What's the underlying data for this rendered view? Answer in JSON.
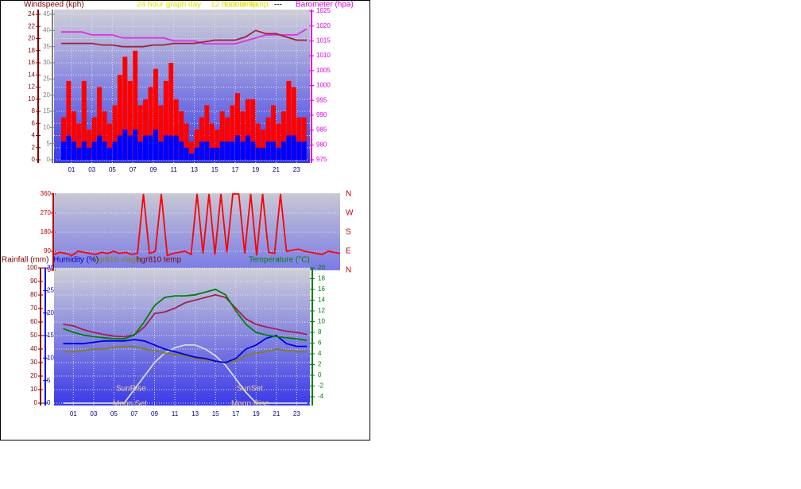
{
  "chart_data": [
    {
      "type": "combo",
      "title": "24 hour graph day",
      "subtitles": [
        "12 hour temp.",
        "Indoor Temp.",
        "---"
      ],
      "ylabel": "Windspeed (kph)",
      "y2label": "Barometer (hpa)",
      "xlim": [
        -0.7,
        24.3
      ],
      "xticks": [
        {
          "value": 1,
          "label": "01"
        },
        {
          "value": 3,
          "label": "03"
        },
        {
          "value": 5,
          "label": "05"
        },
        {
          "value": 7,
          "label": "07"
        },
        {
          "value": 9,
          "label": "09"
        },
        11,
        13,
        15,
        17,
        19,
        21,
        23
      ],
      "ylim": [
        0,
        24
      ],
      "yticks": [
        0,
        2,
        4,
        6,
        8,
        10,
        12,
        14,
        16,
        18,
        20,
        22,
        24
      ],
      "y3lim": [
        0,
        45
      ],
      "y3ticks": [
        0,
        5,
        10,
        15,
        20,
        25,
        30,
        35,
        40,
        45
      ],
      "y2lim": [
        975,
        1025
      ],
      "y2ticks": [
        975,
        980,
        985,
        990,
        995,
        1000,
        1005,
        1010,
        1015,
        1020,
        1025
      ],
      "grid": true,
      "series": [
        {
          "kind": "bar",
          "axis": "y",
          "color": "#ff0000",
          "x": [
            0,
            0.5,
            1,
            1.5,
            2,
            2.5,
            3,
            3.5,
            4,
            4.5,
            5,
            5.5,
            6,
            6.5,
            7,
            7.5,
            8,
            8.5,
            9,
            9.5,
            10,
            10.5,
            11,
            11.5,
            12,
            12.5,
            13,
            13.5,
            14,
            14.5,
            15,
            15.5,
            16,
            16.5,
            17,
            17.5,
            18,
            18.5,
            19,
            19.5,
            20,
            20.5,
            21,
            21.5,
            22,
            22.5,
            23,
            23.5
          ],
          "values": [
            7,
            13,
            8,
            6,
            13,
            5,
            7,
            12,
            8,
            6,
            9,
            14,
            17,
            13,
            18,
            9,
            10,
            12,
            15,
            9,
            13,
            16,
            10,
            8,
            6,
            3,
            5,
            7,
            9,
            6,
            5,
            8,
            7,
            9,
            11,
            8,
            10,
            10,
            6,
            5,
            7,
            9,
            6,
            8,
            13,
            12,
            7,
            7
          ]
        },
        {
          "kind": "bar",
          "axis": "y",
          "color": "#0000ff",
          "x": [
            0,
            0.5,
            1,
            1.5,
            2,
            2.5,
            3,
            3.5,
            4,
            4.5,
            5,
            5.5,
            6,
            6.5,
            7,
            7.5,
            8,
            8.5,
            9,
            9.5,
            10,
            10.5,
            11,
            11.5,
            12,
            12.5,
            13,
            13.5,
            14,
            14.5,
            15,
            15.5,
            16,
            16.5,
            17,
            17.5,
            18,
            18.5,
            19,
            19.5,
            20,
            20.5,
            21,
            21.5,
            22,
            22.5,
            23,
            23.5
          ],
          "values": [
            3,
            4,
            3,
            2,
            3,
            2,
            3,
            4,
            3,
            2,
            3,
            4,
            5,
            4,
            5,
            3,
            4,
            4,
            5,
            3,
            4,
            4,
            4,
            3,
            2,
            1,
            2,
            3,
            3,
            2,
            2,
            3,
            3,
            3,
            4,
            3,
            4,
            3,
            2,
            2,
            3,
            3,
            2,
            3,
            4,
            4,
            3,
            3
          ]
        },
        {
          "kind": "line",
          "axis": "y2",
          "color": "#e030e0",
          "x": [
            0,
            1,
            2,
            3,
            4,
            5,
            6,
            7,
            8,
            9,
            10,
            11,
            12,
            13,
            14,
            15,
            16,
            17,
            18,
            19,
            20,
            21,
            22,
            23,
            24
          ],
          "values": [
            1018,
            1018,
            1018,
            1017,
            1017,
            1017,
            1016,
            1016,
            1016,
            1016,
            1016,
            1015,
            1015,
            1015,
            1014,
            1014,
            1014,
            1014,
            1015,
            1016,
            1017,
            1017,
            1017,
            1017,
            1019
          ]
        },
        {
          "kind": "line",
          "axis": "y3",
          "color": "#a02040",
          "x": [
            0,
            1,
            2,
            3,
            4,
            5,
            6,
            7,
            8,
            9,
            10,
            11,
            12,
            13,
            14,
            15,
            16,
            17,
            18,
            19,
            20,
            21,
            22,
            23,
            24
          ],
          "values": [
            36,
            36,
            36,
            36,
            35.5,
            35.5,
            35,
            35,
            35,
            35.5,
            35.5,
            36,
            36,
            36,
            36.5,
            37,
            37,
            37,
            38,
            40,
            39,
            39,
            38,
            37,
            37
          ]
        }
      ]
    },
    {
      "type": "line",
      "xlim": [
        0,
        24
      ],
      "ylim": [
        0,
        360
      ],
      "yticks": [
        0,
        90,
        180,
        270,
        360
      ],
      "compass": [
        "N",
        "W",
        "S",
        "E",
        "N"
      ],
      "grid": true,
      "series": [
        {
          "kind": "line",
          "axis": "y",
          "color": "#ff0000",
          "x": [
            0,
            0.5,
            1,
            1.5,
            2,
            2.5,
            3,
            3.5,
            4,
            4.5,
            5,
            5.5,
            6,
            6.5,
            7,
            7.5,
            8,
            8.5,
            9,
            9.5,
            10,
            10.5,
            11,
            11.5,
            12,
            12.5,
            13,
            13.5,
            14,
            14.5,
            15,
            15.5,
            16,
            16.5,
            17,
            17.5,
            18,
            18.5,
            19,
            19.5,
            20,
            20.5,
            21,
            21.5,
            22,
            22.5,
            23,
            23.5,
            24
          ],
          "values": [
            75,
            85,
            80,
            70,
            90,
            85,
            80,
            75,
            85,
            80,
            90,
            80,
            85,
            75,
            80,
            360,
            80,
            90,
            360,
            70,
            80,
            85,
            90,
            75,
            360,
            80,
            360,
            75,
            360,
            85,
            360,
            360,
            80,
            360,
            70,
            360,
            85,
            80,
            360,
            90,
            95,
            100,
            90,
            85,
            80,
            75,
            90,
            85,
            80
          ]
        }
      ]
    },
    {
      "type": "line",
      "ylabel": "Rainfall (mm)",
      "y3label": "Humidity (%)",
      "y2label": "Temperature (°C)",
      "annotations": [
        "SunRise",
        "SunSet",
        "Moon Set",
        "Moon Rise"
      ],
      "xlim": [
        -0.9,
        24.3
      ],
      "xticks": [
        {
          "value": 1,
          "label": "01"
        },
        {
          "value": 3,
          "label": "03"
        },
        {
          "value": 5,
          "label": "05"
        },
        {
          "value": 7,
          "label": "07"
        },
        {
          "value": 9,
          "label": "09"
        },
        11,
        13,
        15,
        17,
        19,
        21,
        23
      ],
      "ylim": [
        0,
        100
      ],
      "yticks": [
        0,
        10,
        20,
        30,
        40,
        50,
        60,
        70,
        80,
        90,
        100
      ],
      "y3lim": [
        0,
        30
      ],
      "y3ticks": [
        0,
        5,
        10,
        15,
        20,
        25,
        30
      ],
      "y2lim": [
        -4,
        20
      ],
      "y2ticks": [
        -4,
        -2,
        0,
        2,
        4,
        6,
        8,
        10,
        12,
        14,
        16,
        18,
        20
      ],
      "grid": true,
      "series": [
        {
          "kind": "line",
          "axis": "y",
          "color": "#d8d8d8",
          "x": [
            0,
            1,
            2,
            3,
            4,
            5,
            6,
            7,
            8,
            9,
            10,
            11,
            12,
            13,
            14,
            15,
            16,
            17,
            18,
            19,
            20,
            21,
            22,
            23,
            24
          ],
          "values": [
            0,
            0,
            0,
            0,
            0,
            0,
            0,
            10,
            20,
            30,
            37,
            41,
            43,
            43,
            40,
            35,
            28,
            18,
            8,
            0,
            0,
            0,
            0,
            0,
            0
          ]
        },
        {
          "kind": "line",
          "axis": "y",
          "name": "hgr810 vlagh",
          "color": "#808020",
          "x": [
            0,
            1,
            2,
            3,
            4,
            5,
            6,
            7,
            8,
            9,
            10,
            11,
            12,
            13,
            14,
            15,
            16,
            17,
            18,
            19,
            20,
            21,
            22,
            23,
            24
          ],
          "values": [
            38,
            38,
            39,
            40,
            40,
            41,
            42,
            42,
            40,
            39,
            37,
            36,
            35,
            33,
            32,
            31,
            30,
            31,
            35,
            37,
            38,
            40,
            39,
            38,
            38
          ]
        },
        {
          "kind": "line",
          "axis": "y",
          "color": "#0000e0",
          "x": [
            0,
            1,
            2,
            3,
            4,
            5,
            6,
            7,
            8,
            9,
            10,
            11,
            12,
            13,
            14,
            15,
            16,
            17,
            18,
            19,
            20,
            21,
            22,
            23,
            24
          ],
          "values": [
            44,
            44,
            44,
            45,
            46,
            46,
            46,
            47,
            46,
            43,
            40,
            38,
            36,
            34,
            33,
            31,
            30,
            33,
            40,
            43,
            48,
            50,
            44,
            42,
            42
          ]
        },
        {
          "kind": "line",
          "axis": "y2",
          "name": "hgr810 temp",
          "color": "#a02050",
          "x": [
            0,
            1,
            2,
            3,
            4,
            5,
            6,
            7,
            8,
            9,
            10,
            11,
            12,
            13,
            14,
            15,
            16,
            17,
            18,
            19,
            20,
            21,
            22,
            23,
            24
          ],
          "values": [
            9.5,
            9.2,
            8.5,
            8,
            7.6,
            7.3,
            7.2,
            7.5,
            9,
            11.5,
            11.8,
            12.5,
            13.5,
            14,
            14.5,
            15,
            14.5,
            12.5,
            10.5,
            9.5,
            9,
            8.6,
            8.2,
            8,
            7.6
          ]
        },
        {
          "kind": "line",
          "axis": "y2",
          "color": "#008000",
          "x": [
            0,
            1,
            2,
            3,
            4,
            5,
            6,
            7,
            8,
            9,
            10,
            11,
            12,
            13,
            14,
            15,
            16,
            17,
            18,
            19,
            20,
            21,
            22,
            23,
            24
          ],
          "values": [
            8.7,
            8,
            7.5,
            7.2,
            7,
            6.8,
            6.8,
            7.5,
            10,
            13,
            14.5,
            14.8,
            14.8,
            15,
            15.5,
            16,
            15,
            12,
            9.5,
            8,
            7.5,
            7.2,
            7,
            6.8,
            6.5
          ]
        }
      ]
    }
  ]
}
